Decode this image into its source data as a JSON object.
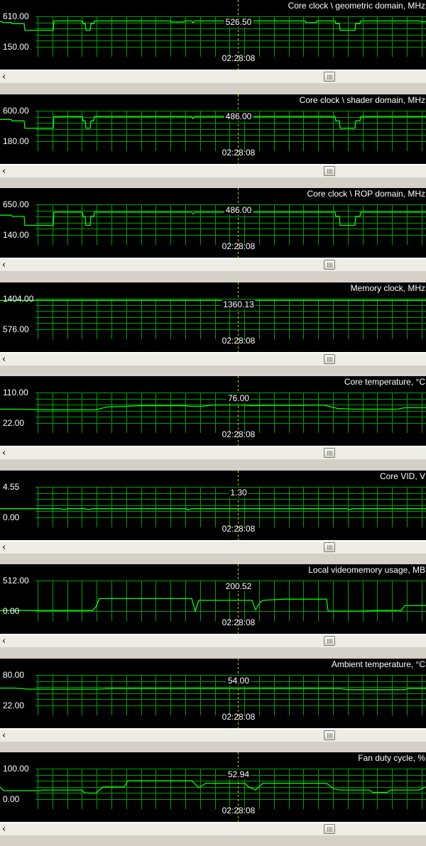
{
  "cursor_time": "02:28:08",
  "colors": {
    "grid": "#00a000",
    "trace": "#00ff00",
    "cursor": "#c8c800",
    "background": "#000000"
  },
  "icons": {
    "scroll_left": "arrow-left-icon",
    "scroll_thumb": "grip-icon"
  },
  "scroll_left_glyph": "‹",
  "graphs": [
    {
      "title": "Core clock \\ geometric domain, MHz",
      "max": "610.00",
      "min": "150.00",
      "current": "526.50",
      "scale": [
        150,
        610
      ],
      "series": [
        [
          0,
          530
        ],
        [
          3,
          530
        ],
        [
          4,
          516
        ],
        [
          16,
          516
        ],
        [
          17,
          500
        ],
        [
          34,
          500
        ],
        [
          35,
          400
        ],
        [
          75,
          400
        ],
        [
          76,
          540
        ],
        [
          116,
          540
        ],
        [
          117,
          500
        ],
        [
          120,
          500
        ],
        [
          121,
          400
        ],
        [
          127,
          400
        ],
        [
          128,
          500
        ],
        [
          132,
          500
        ],
        [
          133,
          540
        ],
        [
          240,
          540
        ],
        [
          241,
          525
        ],
        [
          259,
          525
        ],
        [
          260,
          540
        ],
        [
          270,
          540
        ],
        [
          272,
          510
        ],
        [
          274,
          540
        ],
        [
          430,
          540
        ],
        [
          431,
          515
        ],
        [
          445,
          515
        ],
        [
          446,
          540
        ],
        [
          472,
          540
        ],
        [
          473,
          500
        ],
        [
          478,
          500
        ],
        [
          479,
          400
        ],
        [
          493,
          400
        ],
        [
          500,
          400
        ],
        [
          501,
          500
        ],
        [
          507,
          500
        ],
        [
          508,
          540
        ],
        [
          590,
          540
        ],
        [
          595,
          530
        ],
        [
          600,
          530
        ]
      ]
    },
    {
      "title": "Core clock \\ shader domain, MHz",
      "max": "600.00",
      "min": "180.00",
      "current": "486.00",
      "scale": [
        180,
        600
      ],
      "series": [
        [
          0,
          480
        ],
        [
          16,
          480
        ],
        [
          17,
          460
        ],
        [
          34,
          460
        ],
        [
          35,
          360
        ],
        [
          75,
          360
        ],
        [
          76,
          520
        ],
        [
          116,
          520
        ],
        [
          117,
          460
        ],
        [
          120,
          460
        ],
        [
          121,
          360
        ],
        [
          127,
          360
        ],
        [
          128,
          460
        ],
        [
          132,
          460
        ],
        [
          133,
          520
        ],
        [
          270,
          520
        ],
        [
          272,
          490
        ],
        [
          274,
          520
        ],
        [
          472,
          520
        ],
        [
          473,
          460
        ],
        [
          478,
          460
        ],
        [
          479,
          360
        ],
        [
          500,
          360
        ],
        [
          501,
          460
        ],
        [
          507,
          460
        ],
        [
          508,
          520
        ],
        [
          600,
          520
        ]
      ]
    },
    {
      "title": "Core clock \\ ROP domain, MHz",
      "max": "650.00",
      "min": "140.00",
      "current": "486.00",
      "scale": [
        140,
        650
      ],
      "series": [
        [
          0,
          470
        ],
        [
          16,
          470
        ],
        [
          17,
          450
        ],
        [
          34,
          450
        ],
        [
          35,
          300
        ],
        [
          75,
          300
        ],
        [
          76,
          520
        ],
        [
          116,
          520
        ],
        [
          117,
          450
        ],
        [
          120,
          450
        ],
        [
          121,
          300
        ],
        [
          127,
          300
        ],
        [
          128,
          450
        ],
        [
          132,
          450
        ],
        [
          133,
          520
        ],
        [
          270,
          520
        ],
        [
          272,
          490
        ],
        [
          274,
          520
        ],
        [
          472,
          520
        ],
        [
          473,
          450
        ],
        [
          478,
          450
        ],
        [
          479,
          300
        ],
        [
          500,
          300
        ],
        [
          501,
          450
        ],
        [
          507,
          450
        ],
        [
          508,
          520
        ],
        [
          600,
          520
        ]
      ]
    },
    {
      "title": "Memory clock, MHz",
      "max": "1404.00",
      "min": "576.00",
      "current": "1360.13",
      "scale": [
        576,
        1404
      ],
      "series": [
        [
          0,
          1360
        ],
        [
          600,
          1360
        ]
      ]
    },
    {
      "title": "Core temperature, °C",
      "max": "110.00",
      "min": "22.00",
      "current": "76.00",
      "scale": [
        22,
        110
      ],
      "series": [
        [
          0,
          62
        ],
        [
          30,
          62
        ],
        [
          60,
          60
        ],
        [
          135,
          60
        ],
        [
          150,
          68
        ],
        [
          200,
          72
        ],
        [
          230,
          72
        ],
        [
          260,
          72
        ],
        [
          270,
          70
        ],
        [
          285,
          70
        ],
        [
          300,
          74
        ],
        [
          340,
          74
        ],
        [
          355,
          72
        ],
        [
          380,
          73
        ],
        [
          420,
          73
        ],
        [
          455,
          74
        ],
        [
          460,
          72
        ],
        [
          475,
          64
        ],
        [
          500,
          62
        ],
        [
          560,
          62
        ],
        [
          570,
          66
        ],
        [
          600,
          66
        ]
      ]
    },
    {
      "title": "Core VID, V",
      "max": "4.55",
      "min": "0.00",
      "current": "1.30",
      "scale": [
        0,
        4.55
      ],
      "series": [
        [
          0,
          1.3
        ],
        [
          85,
          1.3
        ],
        [
          90,
          1.15
        ],
        [
          95,
          1.3
        ],
        [
          120,
          1.3
        ],
        [
          125,
          1.15
        ],
        [
          130,
          1.3
        ],
        [
          262,
          1.3
        ],
        [
          265,
          1.1
        ],
        [
          270,
          1.3
        ],
        [
          488,
          1.3
        ],
        [
          492,
          1.15
        ],
        [
          496,
          1.3
        ],
        [
          600,
          1.3
        ]
      ]
    },
    {
      "title": "Local videomemory usage, MB",
      "max": "512.00",
      "min": "0.00",
      "current": "200.52",
      "scale": [
        0,
        512
      ],
      "series": [
        [
          0,
          10
        ],
        [
          130,
          10
        ],
        [
          135,
          70
        ],
        [
          140,
          210
        ],
        [
          145,
          210
        ],
        [
          270,
          210
        ],
        [
          275,
          0
        ],
        [
          280,
          180
        ],
        [
          310,
          180
        ],
        [
          355,
          180
        ],
        [
          360,
          20
        ],
        [
          366,
          140
        ],
        [
          370,
          180
        ],
        [
          400,
          200
        ],
        [
          460,
          200
        ],
        [
          462,
          0
        ],
        [
          510,
          0
        ],
        [
          530,
          10
        ],
        [
          565,
          10
        ],
        [
          570,
          90
        ],
        [
          600,
          90
        ]
      ]
    },
    {
      "title": "Ambient temperature, °C",
      "max": "80.00",
      "min": "22.00",
      "current": "54.00",
      "scale": [
        22,
        80
      ],
      "series": [
        [
          0,
          55
        ],
        [
          20,
          55
        ],
        [
          40,
          53
        ],
        [
          140,
          53
        ],
        [
          150,
          54
        ],
        [
          480,
          54
        ],
        [
          490,
          52
        ],
        [
          570,
          52
        ],
        [
          575,
          54
        ],
        [
          600,
          54
        ]
      ]
    },
    {
      "title": "Fan duty cycle, %",
      "max": "100.00",
      "min": "0.00",
      "current": "52.94",
      "scale": [
        0,
        100
      ],
      "series": [
        [
          0,
          40
        ],
        [
          5,
          28
        ],
        [
          55,
          28
        ],
        [
          60,
          30
        ],
        [
          115,
          30
        ],
        [
          120,
          20
        ],
        [
          135,
          20
        ],
        [
          140,
          30
        ],
        [
          145,
          40
        ],
        [
          175,
          40
        ],
        [
          180,
          60
        ],
        [
          270,
          60
        ],
        [
          280,
          38
        ],
        [
          290,
          52
        ],
        [
          345,
          52
        ],
        [
          350,
          40
        ],
        [
          360,
          30
        ],
        [
          370,
          52
        ],
        [
          460,
          52
        ],
        [
          470,
          34
        ],
        [
          480,
          30
        ],
        [
          520,
          30
        ],
        [
          525,
          22
        ],
        [
          545,
          22
        ],
        [
          550,
          30
        ],
        [
          590,
          30
        ],
        [
          600,
          40
        ]
      ]
    }
  ]
}
